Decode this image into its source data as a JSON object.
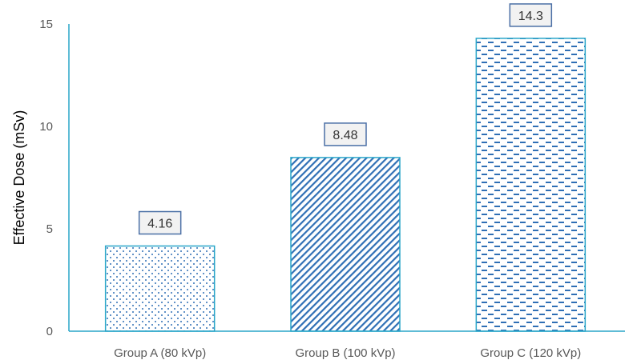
{
  "chart_data": {
    "type": "bar",
    "title": "",
    "xlabel": "",
    "ylabel": "Effective Dose (mSv)",
    "categories": [
      "Group A (80 kVp)",
      "Group B (100 kVp)",
      "Group C (120 kVp)"
    ],
    "values": [
      4.16,
      8.48,
      14.3
    ],
    "data_labels": [
      "4.16",
      "8.48",
      "14.3"
    ],
    "ylim": [
      0,
      15
    ],
    "yticks": [
      0,
      5,
      10,
      15
    ],
    "grid": false,
    "legend": "none",
    "patterns": [
      "dots",
      "diagonal",
      "dashes"
    ],
    "colors": {
      "bar_outline": "#2aa6c9",
      "pattern_fill": "#2f6fb5",
      "axis": "#2aa6c9",
      "label_box_border": "#4a6fa5",
      "label_box_fill": "#f2f2f2"
    }
  }
}
